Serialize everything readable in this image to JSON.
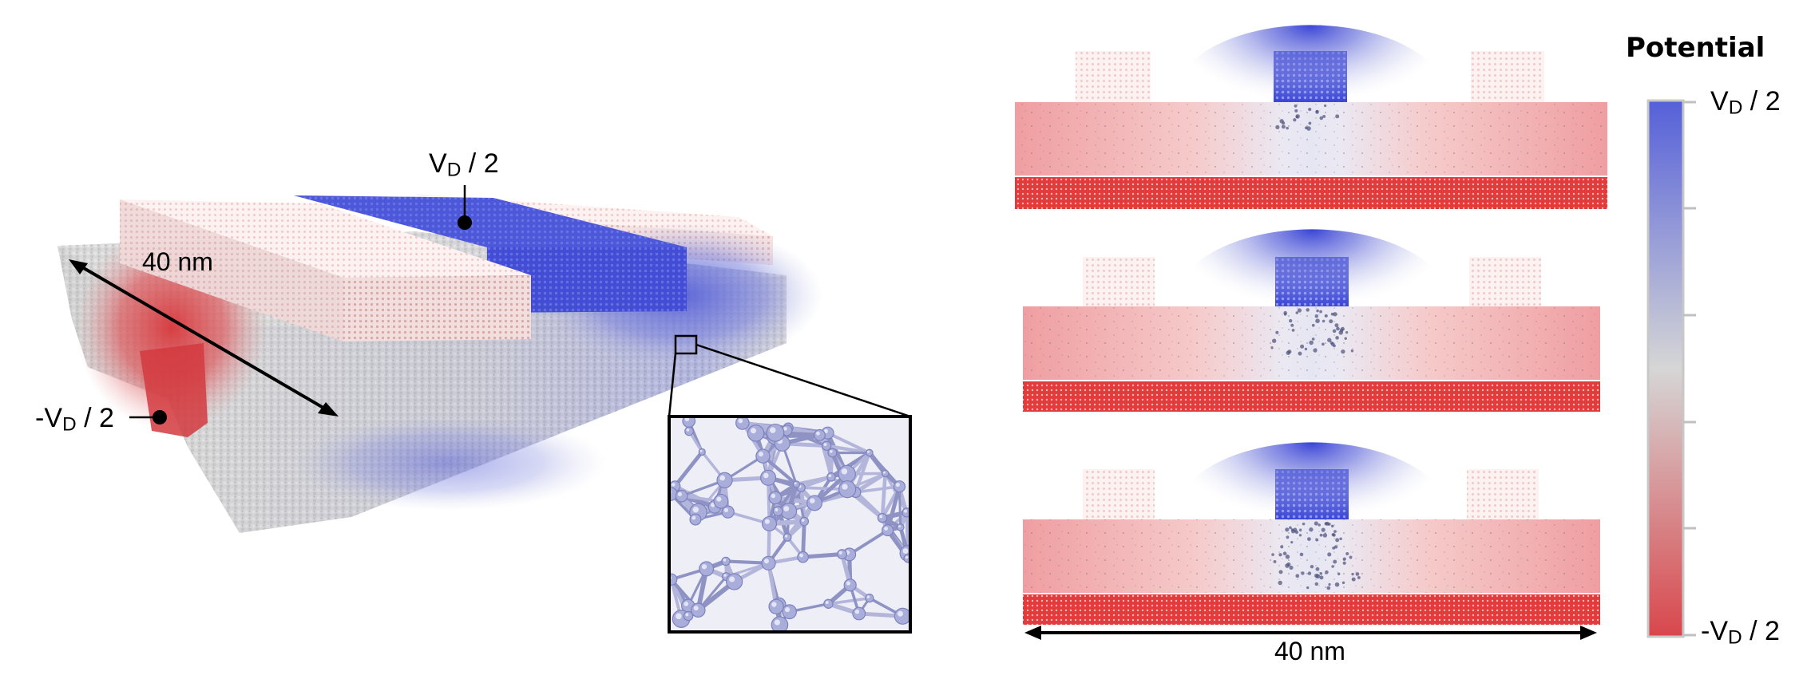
{
  "figure": {
    "left_panel": {
      "top_contact_label": {
        "main": "V",
        "sub": "D",
        "rest": " / 2"
      },
      "left_contact_label": {
        "main": "-V",
        "sub": "D",
        "rest": " / 2"
      },
      "length_label": "40 nm"
    },
    "right_panel": {
      "length_label": "40 nm",
      "slices": [
        "slice-1",
        "slice-2",
        "slice-3"
      ]
    },
    "colorbar": {
      "title": "Potential",
      "top_label": {
        "main": "V",
        "sub": "D",
        "rest": " / 2"
      },
      "bottom_label": {
        "main": "-V",
        "sub": "D",
        "rest": " / 2"
      },
      "colors": {
        "top": "#5560d8",
        "middle": "#d6d6d6",
        "bottom": "#d8474c"
      }
    }
  }
}
